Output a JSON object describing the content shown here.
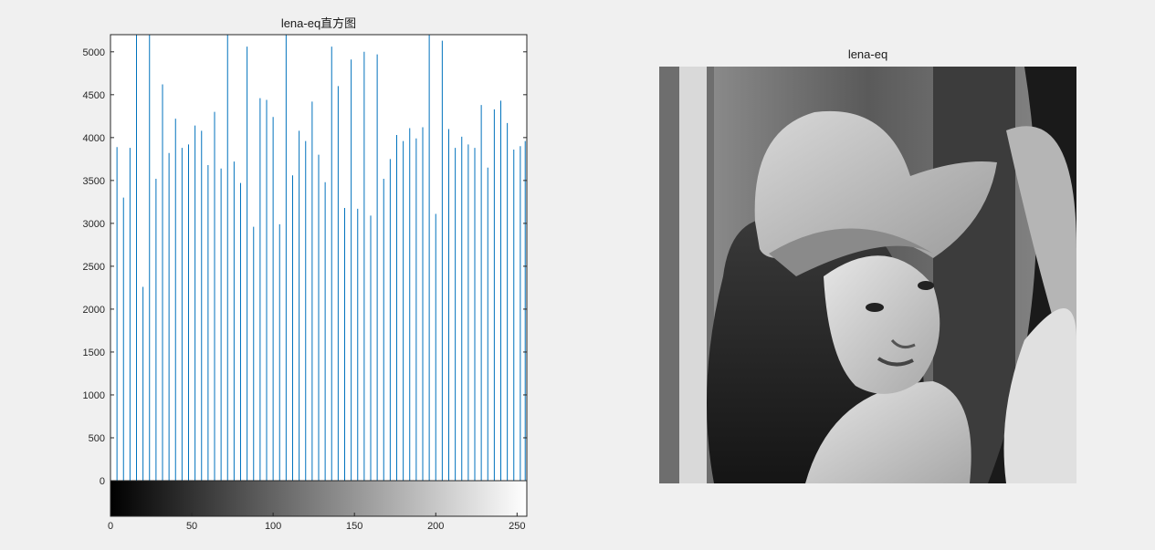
{
  "figure": {
    "background": "#f0f0f0"
  },
  "histogram": {
    "title": "lena-eq直方图"
  },
  "image_panel": {
    "title": "lena-eq",
    "image_description": "grayscale lena-eq photo"
  },
  "chart_data": {
    "type": "bar",
    "title": "lena-eq直方图",
    "xlabel": "",
    "ylabel": "",
    "xlim": [
      0,
      256
    ],
    "ylim": [
      0,
      5200
    ],
    "x_ticks": [
      0,
      50,
      100,
      150,
      200,
      250
    ],
    "y_ticks": [
      0,
      500,
      1000,
      1500,
      2000,
      2500,
      3000,
      3500,
      4000,
      4500,
      5000
    ],
    "grid": false,
    "bar_color": "#0072bd",
    "colorbar": "grayscale 0 to 255",
    "x": [
      0,
      4,
      8,
      12,
      16,
      20,
      24,
      28,
      32,
      36,
      40,
      44,
      48,
      52,
      56,
      60,
      64,
      68,
      72,
      76,
      80,
      84,
      88,
      92,
      96,
      100,
      104,
      108,
      112,
      116,
      120,
      124,
      128,
      132,
      136,
      140,
      144,
      148,
      152,
      156,
      160,
      164,
      168,
      172,
      176,
      180,
      184,
      188,
      192,
      196,
      200,
      204,
      208,
      212,
      216,
      220,
      224,
      228,
      232,
      236,
      240,
      244,
      248,
      252,
      255
    ],
    "values": [
      4300,
      3890,
      3300,
      3880,
      5200,
      2260,
      5200,
      3520,
      4620,
      3820,
      4220,
      3880,
      3920,
      4140,
      4080,
      3680,
      4300,
      3640,
      5200,
      3720,
      3470,
      5060,
      2960,
      4460,
      4440,
      4240,
      2990,
      5200,
      3560,
      4080,
      3960,
      4420,
      3800,
      3480,
      5060,
      4600,
      3180,
      4910,
      3170,
      5000,
      3090,
      4970,
      3520,
      3750,
      4030,
      3960,
      4110,
      3990,
      4120,
      5200,
      3110,
      5130,
      4100,
      3880,
      4010,
      3920,
      3880,
      4380,
      3650,
      4330,
      4430,
      4170,
      3860,
      3900,
      3960
    ]
  }
}
